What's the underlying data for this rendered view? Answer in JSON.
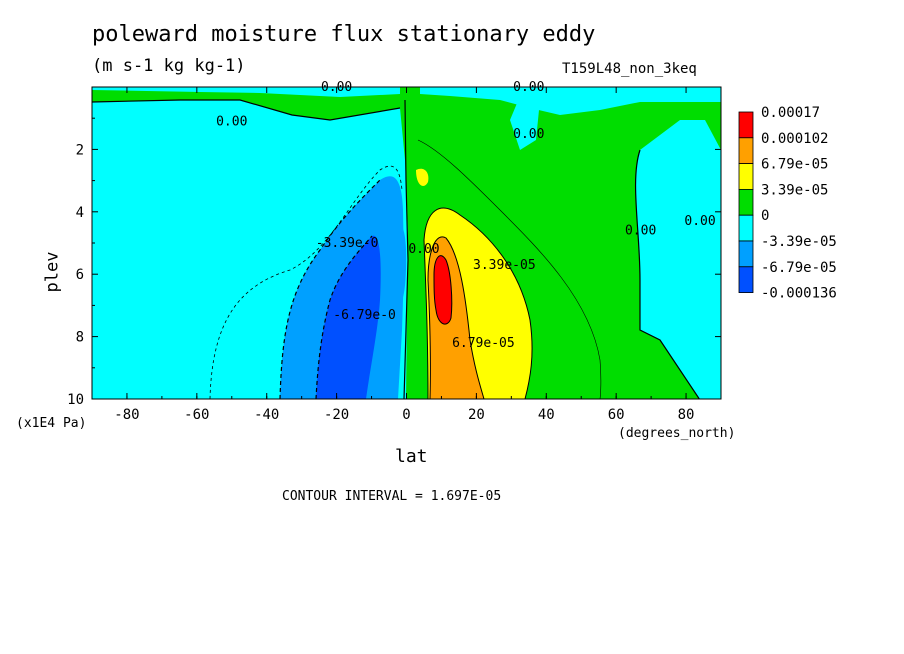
{
  "chart_data": {
    "type": "heatmap",
    "title": "poleward moisture flux stationary eddy",
    "subtitle": "(m s-1 kg kg-1)",
    "run_label": "T159L48_non_3keq",
    "xlabel": "lat",
    "x_unit": "(degrees_north)",
    "ylabel": "plev",
    "y_unit": "(x1E4 Pa)",
    "xlim": [
      -90,
      90
    ],
    "ylim": [
      10,
      0
    ],
    "x_ticks": [
      -80,
      -60,
      -40,
      -20,
      0,
      20,
      40,
      60,
      80
    ],
    "x_tick_labels": [
      "-80",
      "-60",
      "-40",
      "-20",
      "0",
      "20",
      "40",
      "60",
      "80"
    ],
    "y_ticks": [
      2,
      4,
      6,
      8,
      10
    ],
    "y_tick_labels": [
      "2",
      "4",
      "6",
      "8",
      "10"
    ],
    "contour_interval_text": "CONTOUR INTERVAL = 1.697E-05",
    "legend": {
      "placement": "right",
      "labels": [
        "0.00017",
        "0.000102",
        "6.79e-05",
        "3.39e-05",
        "0",
        "-3.39e-05",
        "-6.79e-05",
        "-0.000136"
      ],
      "colors": [
        "#ff0000",
        "#ffa000",
        "#ffff00",
        "#00dd00",
        "#00ffff",
        "#00a0ff",
        "#0050ff"
      ]
    },
    "contour_labels": [
      {
        "text": "0.00",
        "lon": -20,
        "p": 0.0
      },
      {
        "text": "0.00",
        "lon": 35,
        "p": 0.0
      },
      {
        "text": "0.00",
        "lon": -50,
        "p": 1.1
      },
      {
        "text": "0.00",
        "lon": 35,
        "p": 1.5
      },
      {
        "text": "-3.39e-0",
        "lon": -17,
        "p": 5.0
      },
      {
        "text": "0.00",
        "lon": 5,
        "p": 5.2
      },
      {
        "text": "3.39e-05",
        "lon": 28,
        "p": 5.7
      },
      {
        "text": "-6.79e-0",
        "lon": -12,
        "p": 7.3
      },
      {
        "text": "6.79e-05",
        "lon": 22,
        "p": 8.2
      },
      {
        "text": "0.00",
        "lon": 67,
        "p": 4.6
      },
      {
        "text": "0.00",
        "lon": 84,
        "p": 4.3
      }
    ]
  }
}
